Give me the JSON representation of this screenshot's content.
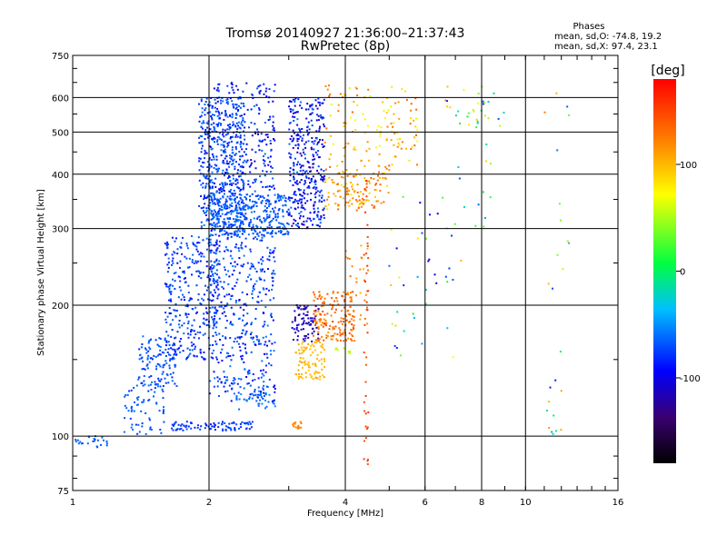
{
  "chart_data": {
    "type": "scatter",
    "title": "Tromsø 20140927 21:36:00–21:37:43",
    "subtitle": "RwPretec (8p)",
    "xlabel": "Frequency [MHz]",
    "ylabel": "Stationary phase Virtual Height [km]",
    "x_scale": "log",
    "y_scale": "log",
    "xlim": [
      1,
      16
    ],
    "ylim": [
      75,
      750
    ],
    "x_ticks": [
      1,
      2,
      4,
      6,
      8,
      10,
      16
    ],
    "y_ticks": [
      75,
      100,
      200,
      300,
      400,
      500,
      600,
      750
    ],
    "grid": true,
    "stats": {
      "heading": "Phases",
      "line_o": "mean, sd,O: -74.8, 19.2",
      "line_x": "mean, sd,X:  97.4, 23.1"
    },
    "colorbar": {
      "label": "[deg]",
      "range": [
        -180,
        180
      ],
      "ticks": [
        100,
        0,
        -100
      ],
      "colormap": [
        "#000000",
        "#2b0060",
        "#0000ff",
        "#00c8ff",
        "#00ff00",
        "#ffff00",
        "#ff8000",
        "#ff0000"
      ]
    },
    "regions": [
      {
        "x": [
          1.0,
          1.2
        ],
        "y": [
          94,
          100
        ],
        "phase": [
          -70,
          -60
        ],
        "n": 25
      },
      {
        "x": [
          1.3,
          1.6
        ],
        "y": [
          100,
          135
        ],
        "phase": [
          -80,
          -60
        ],
        "n": 70
      },
      {
        "x": [
          1.4,
          1.7
        ],
        "y": [
          130,
          170
        ],
        "phase": [
          -85,
          -60
        ],
        "n": 120
      },
      {
        "x": [
          1.6,
          2.1
        ],
        "y": [
          150,
          290
        ],
        "phase": [
          -95,
          -60
        ],
        "n": 320
      },
      {
        "x": [
          1.65,
          2.5
        ],
        "y": [
          103,
          108
        ],
        "phase": [
          -85,
          -70
        ],
        "n": 90
      },
      {
        "x": [
          2.0,
          2.8
        ],
        "y": [
          120,
          300
        ],
        "phase": [
          -100,
          -55
        ],
        "n": 450
      },
      {
        "x": [
          2.3,
          2.8
        ],
        "y": [
          115,
          130
        ],
        "phase": [
          -70,
          -50
        ],
        "n": 40
      },
      {
        "x": [
          1.9,
          2.4
        ],
        "y": [
          300,
          600
        ],
        "phase": [
          -90,
          -55
        ],
        "n": 450
      },
      {
        "x": [
          2.0,
          3.0
        ],
        "y": [
          290,
          360
        ],
        "phase": [
          -80,
          -55
        ],
        "n": 350
      },
      {
        "x": [
          2.0,
          2.8
        ],
        "y": [
          360,
          650
        ],
        "phase": [
          -110,
          -60
        ],
        "n": 250
      },
      {
        "x": [
          3.0,
          3.6
        ],
        "y": [
          300,
          600
        ],
        "phase": [
          -120,
          -60
        ],
        "n": 350
      },
      {
        "x": [
          3.6,
          5.0
        ],
        "y": [
          330,
          420
        ],
        "phase": [
          80,
          140
        ],
        "n": 140
      },
      {
        "x": [
          3.6,
          5.8
        ],
        "y": [
          420,
          640
        ],
        "phase": [
          60,
          140
        ],
        "n": 120
      },
      {
        "x": [
          3.05,
          3.5
        ],
        "y": [
          165,
          200
        ],
        "phase": [
          -130,
          -100
        ],
        "n": 80
      },
      {
        "x": [
          3.1,
          3.6
        ],
        "y": [
          135,
          165
        ],
        "phase": [
          90,
          110
        ],
        "n": 90
      },
      {
        "x": [
          3.4,
          4.2
        ],
        "y": [
          165,
          215
        ],
        "phase": [
          110,
          150
        ],
        "n": 160
      },
      {
        "x": [
          3.05,
          3.2
        ],
        "y": [
          104,
          108
        ],
        "phase": [
          110,
          130
        ],
        "n": 15
      },
      {
        "x": [
          3.8,
          4.1
        ],
        "y": [
          155,
          160
        ],
        "phase": [
          50,
          60
        ],
        "n": 10
      },
      {
        "x": [
          4.0,
          4.5
        ],
        "y": [
          180,
          280
        ],
        "phase": [
          100,
          140
        ],
        "n": 30
      },
      {
        "x": [
          4.4,
          4.5
        ],
        "y": [
          85,
          400
        ],
        "phase": [
          140,
          160
        ],
        "n": 40
      },
      {
        "x": [
          5.0,
          7.0
        ],
        "y": [
          150,
          360
        ],
        "phase": [
          -110,
          100
        ],
        "n": 40
      },
      {
        "x": [
          6.2,
          9.0
        ],
        "y": [
          500,
          650
        ],
        "phase": [
          -100,
          120
        ],
        "n": 25
      },
      {
        "x": [
          7.0,
          8.5
        ],
        "y": [
          250,
          600
        ],
        "phase": [
          -80,
          120
        ],
        "n": 20
      },
      {
        "x": [
          11.0,
          12.5
        ],
        "y": [
          100,
          650
        ],
        "phase": [
          -90,
          130
        ],
        "n": 25
      }
    ]
  }
}
